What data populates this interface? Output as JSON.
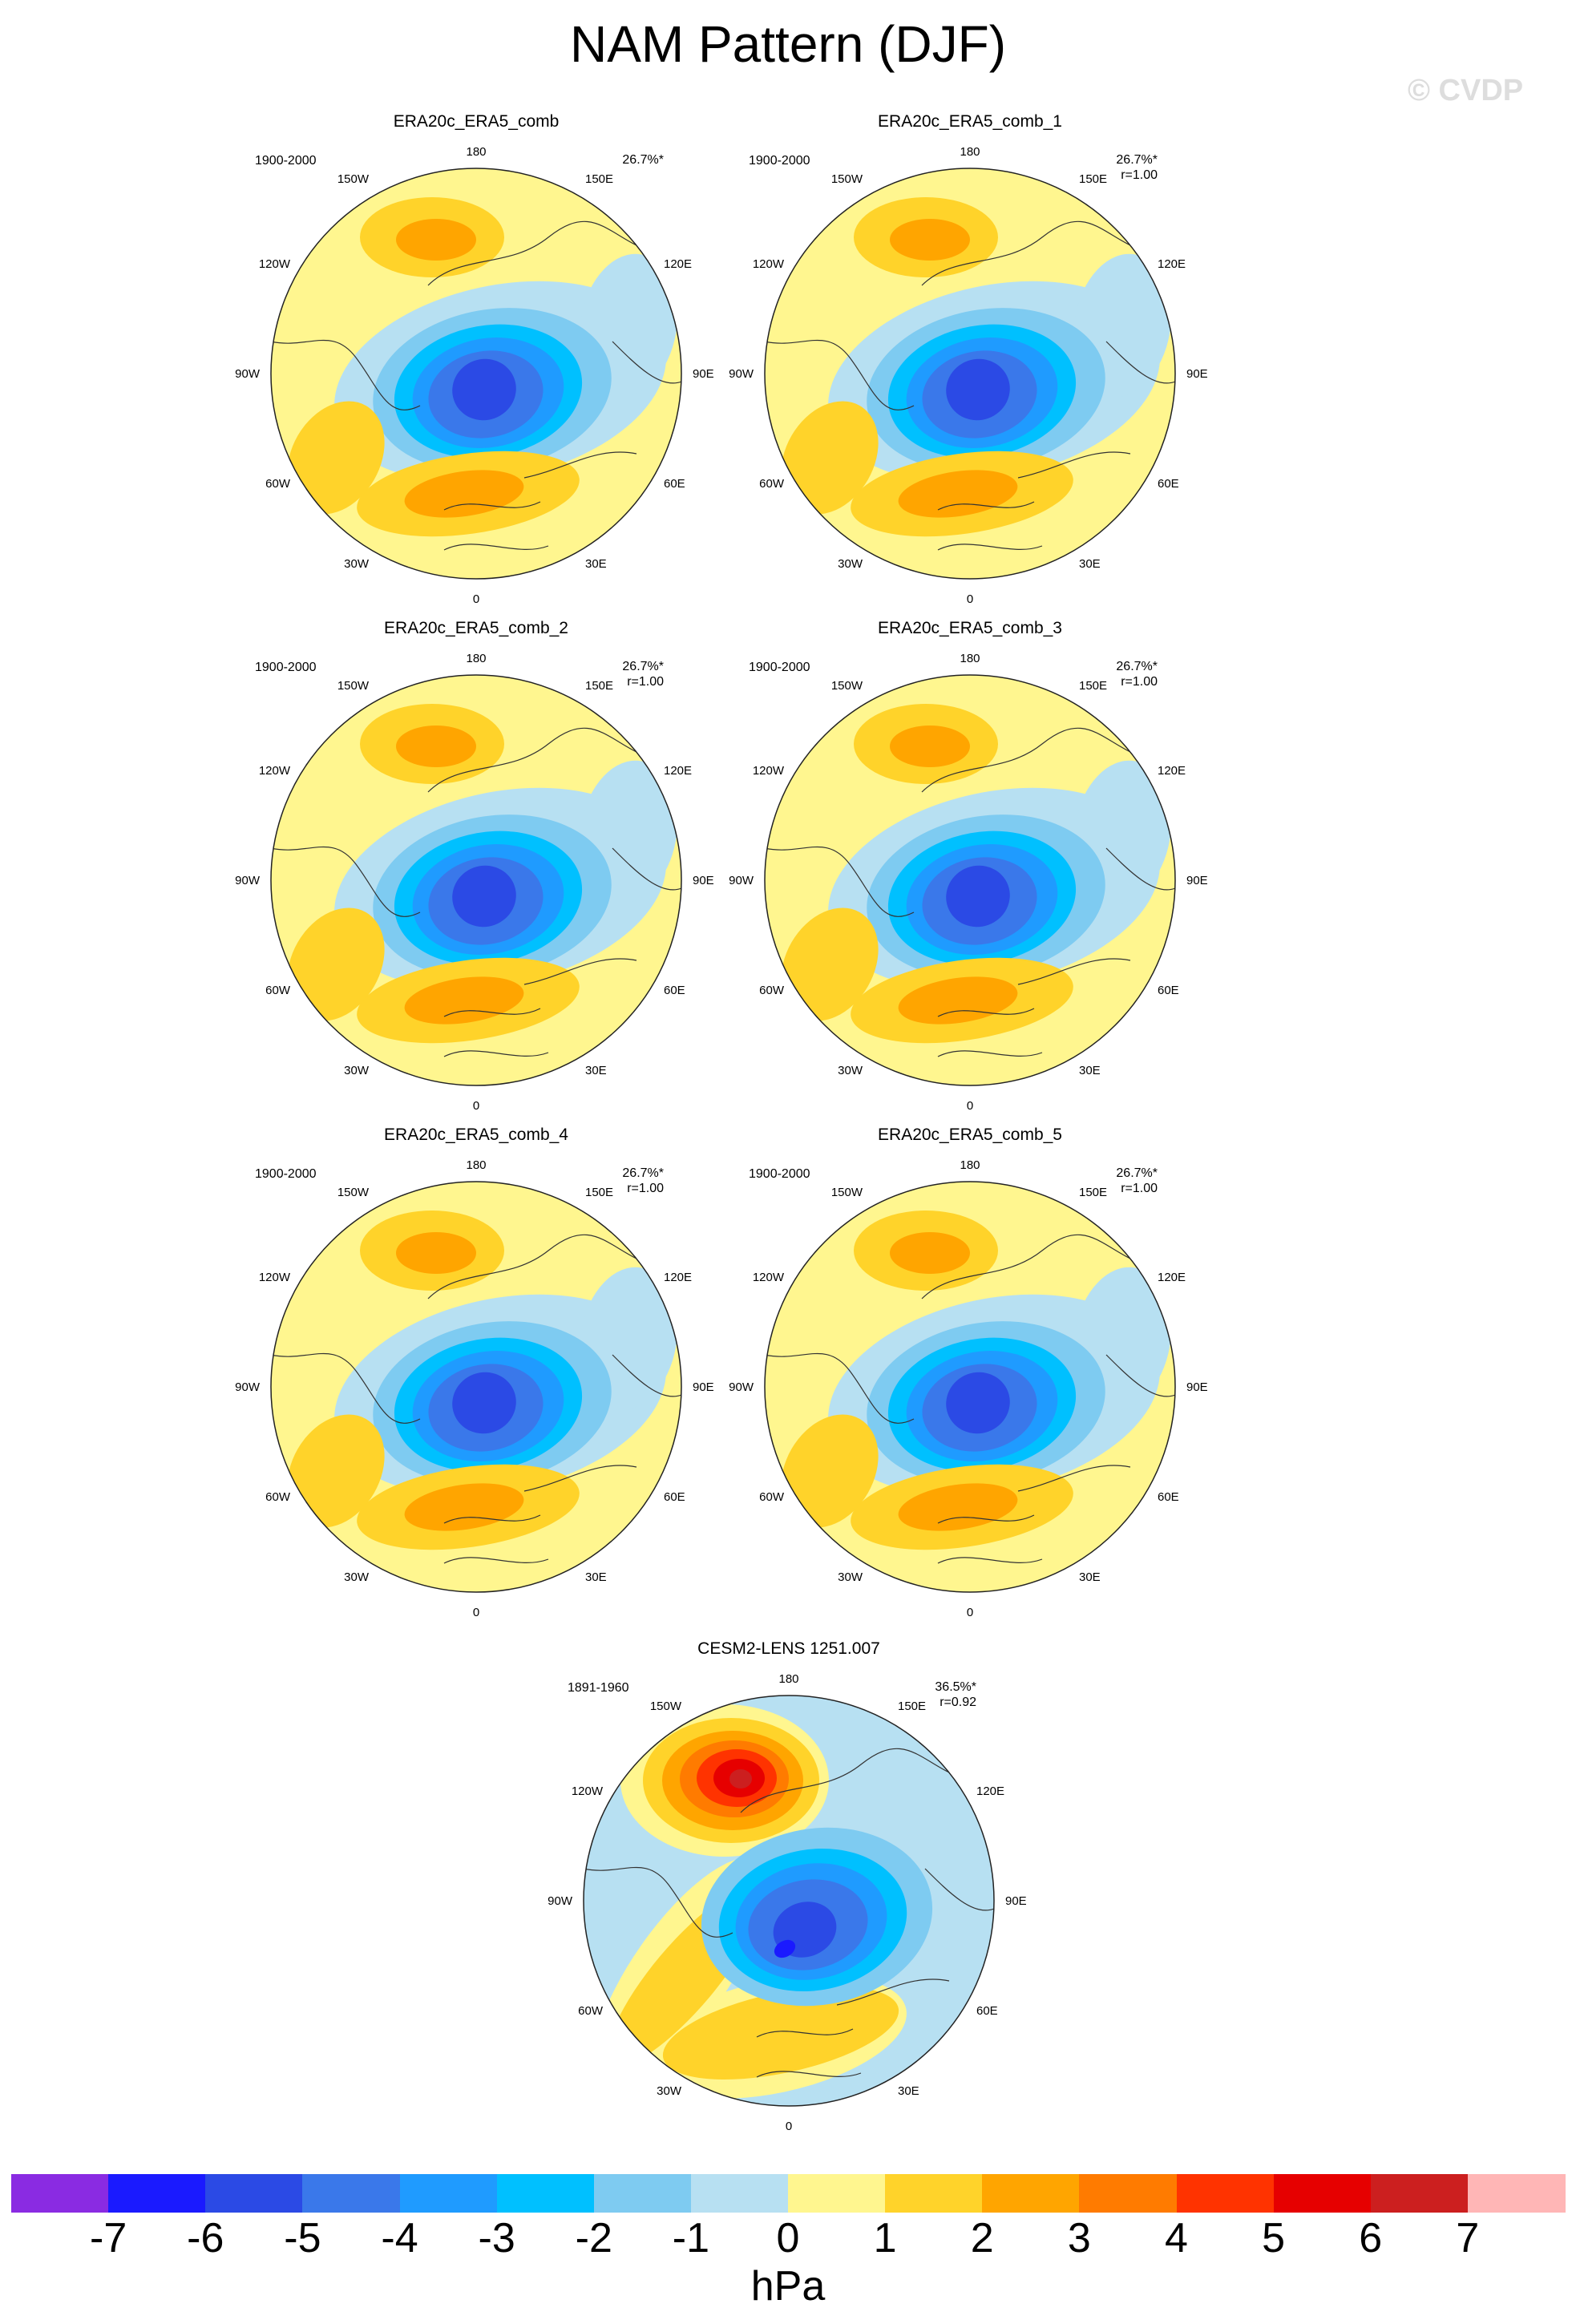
{
  "title": "NAM Pattern (DJF)",
  "watermark": "© CVDP",
  "units": "hPa",
  "lon_labels": {
    "top": "180",
    "bottom": "0",
    "upper_left": "150W",
    "upper_right": "150E",
    "mid_upper_left": "120W",
    "mid_upper_right": "120E",
    "left": "90W",
    "right": "90E",
    "mid_lower_left": "60W",
    "mid_lower_right": "60E",
    "lower_left": "30W",
    "lower_right": "30E"
  },
  "panels": [
    {
      "title": "ERA20c_ERA5_comb",
      "years": "1900-2000",
      "pct": "26.7%*",
      "r": ""
    },
    {
      "title": "ERA20c_ERA5_comb_1",
      "years": "1900-2000",
      "pct": "26.7%*",
      "r": "r=1.00"
    },
    {
      "title": "ERA20c_ERA5_comb_2",
      "years": "1900-2000",
      "pct": "26.7%*",
      "r": "r=1.00"
    },
    {
      "title": "ERA20c_ERA5_comb_3",
      "years": "1900-2000",
      "pct": "26.7%*",
      "r": "r=1.00"
    },
    {
      "title": "ERA20c_ERA5_comb_4",
      "years": "1900-2000",
      "pct": "26.7%*",
      "r": "r=1.00"
    },
    {
      "title": "ERA20c_ERA5_comb_5",
      "years": "1900-2000",
      "pct": "26.7%*",
      "r": "r=1.00"
    },
    {
      "title": "CESM2-LENS 1251.007",
      "years": "1891-1960",
      "pct": "36.5%*",
      "r": "r=0.92"
    }
  ],
  "colorbar": {
    "ticks": [
      "-7",
      "-6",
      "-5",
      "-4",
      "-3",
      "-2",
      "-1",
      "0",
      "1",
      "2",
      "3",
      "4",
      "5",
      "6",
      "7"
    ],
    "colors": [
      "#8a2be2",
      "#1a1aff",
      "#2b4ae5",
      "#3a78ea",
      "#1f9bff",
      "#00c0ff",
      "#7ecbf1",
      "#b7e0f2",
      "#fff68f",
      "#ffd32a",
      "#ffa500",
      "#ff7b00",
      "#ff3300",
      "#e60000",
      "#cc1f1f",
      "#ffb6b6"
    ]
  }
}
